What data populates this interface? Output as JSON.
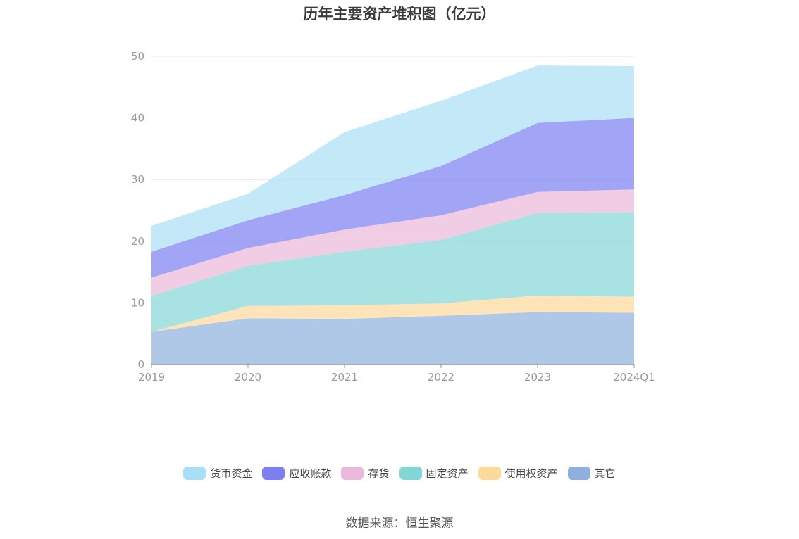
{
  "chart_data": {
    "type": "area",
    "stacked": true,
    "title": "历年主要资产堆积图（亿元）",
    "categories": [
      "2019",
      "2020",
      "2021",
      "2022",
      "2023",
      "2024Q1"
    ],
    "ylim": [
      0,
      50
    ],
    "yticks": [
      0,
      10,
      20,
      30,
      40,
      50
    ],
    "grid": true,
    "legend_position": "bottom",
    "series": [
      {
        "name": "其它",
        "color": "#8fb0dd",
        "values": [
          5.3,
          7.5,
          7.4,
          7.9,
          8.5,
          8.4
        ]
      },
      {
        "name": "使用权资产",
        "color": "#fdd99a",
        "values": [
          0.0,
          2.0,
          2.2,
          2.0,
          2.7,
          2.6
        ]
      },
      {
        "name": "固定资产",
        "color": "#83d6d6",
        "values": [
          5.8,
          6.5,
          8.7,
          10.3,
          13.4,
          13.7
        ]
      },
      {
        "name": "存货",
        "color": "#ebb8da",
        "values": [
          3.0,
          2.9,
          3.6,
          4.0,
          3.4,
          3.7
        ]
      },
      {
        "name": "应收账款",
        "color": "#7b7ff2",
        "values": [
          4.2,
          4.5,
          5.6,
          8.0,
          11.2,
          11.6
        ]
      },
      {
        "name": "货币资金",
        "color": "#a9dff6",
        "values": [
          4.2,
          4.3,
          10.2,
          10.6,
          9.3,
          8.4
        ]
      }
    ]
  },
  "legend_order": [
    "货币资金",
    "应收账款",
    "存货",
    "固定资产",
    "使用权资产",
    "其它"
  ],
  "source_text": "数据来源：恒生聚源"
}
